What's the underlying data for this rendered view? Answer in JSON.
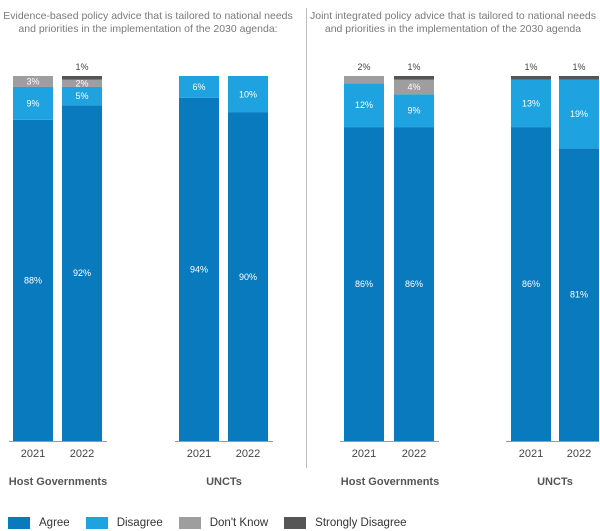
{
  "chart_data": {
    "type": "bar",
    "stacked": true,
    "legend_position": "bottom-left",
    "series_colors": {
      "Agree": "#0a7abf",
      "Disagree": "#1ea2e0",
      "Don't Know": "#9e9e9e",
      "Strongly Disagree": "#555555"
    },
    "legend": [
      "Agree",
      "Disagree",
      "Don't Know",
      "Strongly Disagree"
    ],
    "panels": [
      {
        "title": "Evidence-based policy advice that is tailored to national needs and priorities in the implementation of the 2030 agenda:",
        "groups": [
          {
            "name": "Host Governments",
            "bars": [
              {
                "year": "2021",
                "segments": [
                  {
                    "series": "Agree",
                    "value": 88,
                    "label": "88%"
                  },
                  {
                    "series": "Disagree",
                    "value": 9,
                    "label": "9%"
                  },
                  {
                    "series": "Don't Know",
                    "value": 3,
                    "label": "3%"
                  }
                ]
              },
              {
                "year": "2022",
                "segments": [
                  {
                    "series": "Agree",
                    "value": 92,
                    "label": "92%"
                  },
                  {
                    "series": "Disagree",
                    "value": 5,
                    "label": "5%"
                  },
                  {
                    "series": "Don't Know",
                    "value": 2,
                    "label": "2%"
                  },
                  {
                    "series": "Strongly Disagree",
                    "value": 1,
                    "label": "1%"
                  }
                ]
              }
            ]
          },
          {
            "name": "UNCTs",
            "bars": [
              {
                "year": "2021",
                "segments": [
                  {
                    "series": "Agree",
                    "value": 94,
                    "label": "94%"
                  },
                  {
                    "series": "Disagree",
                    "value": 6,
                    "label": "6%"
                  }
                ]
              },
              {
                "year": "2022",
                "segments": [
                  {
                    "series": "Agree",
                    "value": 90,
                    "label": "90%"
                  },
                  {
                    "series": "Disagree",
                    "value": 10,
                    "label": "10%"
                  }
                ]
              }
            ]
          }
        ]
      },
      {
        "title": "Joint integrated policy advice that is tailored to national needs and priorities in the implementation of the 2030 agenda",
        "groups": [
          {
            "name": "Host Governments",
            "bars": [
              {
                "year": "2021",
                "segments": [
                  {
                    "series": "Agree",
                    "value": 86,
                    "label": "86%"
                  },
                  {
                    "series": "Disagree",
                    "value": 12,
                    "label": "12%"
                  },
                  {
                    "series": "Don't Know",
                    "value": 2,
                    "label": "2%"
                  }
                ]
              },
              {
                "year": "2022",
                "segments": [
                  {
                    "series": "Agree",
                    "value": 86,
                    "label": "86%"
                  },
                  {
                    "series": "Disagree",
                    "value": 9,
                    "label": "9%"
                  },
                  {
                    "series": "Don't Know",
                    "value": 4,
                    "label": "4%"
                  },
                  {
                    "series": "Strongly Disagree",
                    "value": 1,
                    "label": "1%"
                  }
                ]
              }
            ]
          },
          {
            "name": "UNCTs",
            "bars": [
              {
                "year": "2021",
                "segments": [
                  {
                    "series": "Agree",
                    "value": 86,
                    "label": "86%"
                  },
                  {
                    "series": "Disagree",
                    "value": 13,
                    "label": "13%"
                  },
                  {
                    "series": "Strongly Disagree",
                    "value": 1,
                    "label": "1%"
                  }
                ]
              },
              {
                "year": "2022",
                "segments": [
                  {
                    "series": "Agree",
                    "value": 81,
                    "label": "81%"
                  },
                  {
                    "series": "Disagree",
                    "value": 19,
                    "label": "19%"
                  },
                  {
                    "series": "Strongly Disagree",
                    "value": 1,
                    "label": "1%"
                  }
                ]
              }
            ]
          }
        ]
      }
    ]
  }
}
